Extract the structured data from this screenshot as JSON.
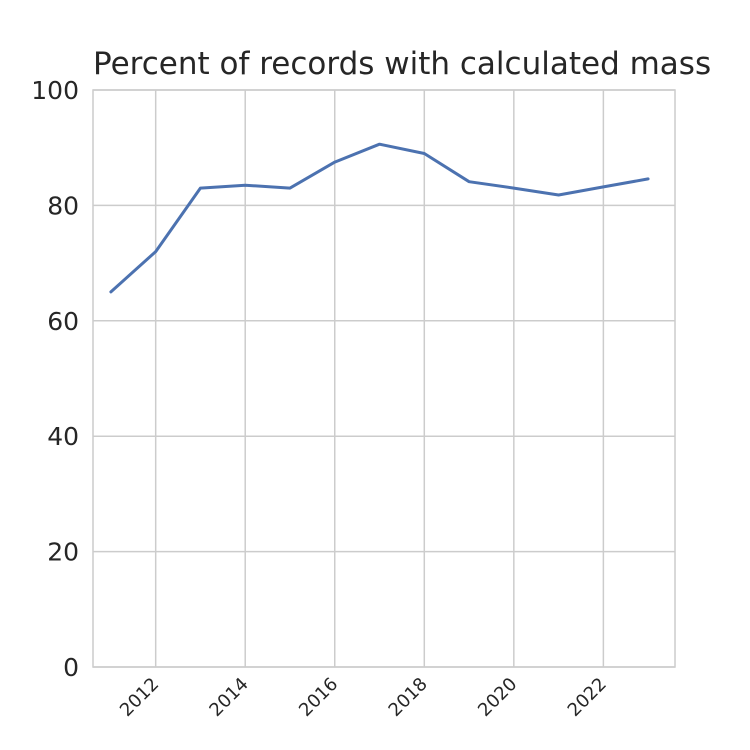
{
  "chart_data": {
    "type": "line",
    "title": "Percent of records with calculated mass",
    "xlabel": "",
    "ylabel": "",
    "xlim": [
      2010.6,
      2023.6
    ],
    "ylim": [
      0,
      100
    ],
    "x_ticks": [
      "2012",
      "2014",
      "2016",
      "2018",
      "2020",
      "2022"
    ],
    "y_ticks": [
      "0",
      "20",
      "40",
      "60",
      "80",
      "100"
    ],
    "grid": true,
    "legend": "none",
    "colors": {
      "series": "#4c72b0",
      "grid": "#cccccc",
      "text": "#262626"
    },
    "series": [
      {
        "x": [
          2011,
          2012,
          2013,
          2014,
          2015,
          2016,
          2017,
          2018,
          2019,
          2020,
          2021,
          2022,
          2023
        ],
        "values": [
          65.0,
          72.0,
          83.0,
          83.5,
          83.0,
          87.5,
          90.6,
          89.0,
          84.1,
          83.0,
          81.8,
          83.2,
          84.6
        ]
      }
    ]
  }
}
